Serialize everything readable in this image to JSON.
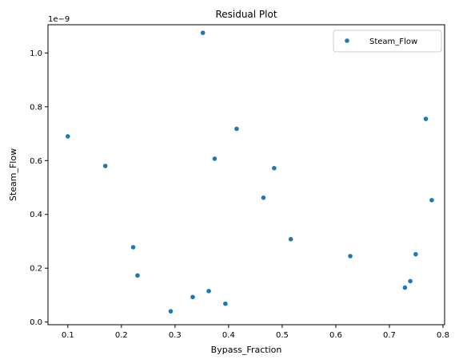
{
  "chart_data": {
    "type": "scatter",
    "title": "Residual Plot",
    "xlabel": "Bypass_Fraction",
    "ylabel": "Steam_Flow",
    "y_offset_label": "1e−9",
    "xlim": [
      0.063,
      0.803
    ],
    "ylim": [
      -0.01,
      1.105
    ],
    "x_ticks": [
      0.1,
      0.2,
      0.3,
      0.4,
      0.5,
      0.6,
      0.7,
      0.8
    ],
    "x_tick_labels": [
      "0.1",
      "0.2",
      "0.3",
      "0.4",
      "0.5",
      "0.6",
      "0.7",
      "0.8"
    ],
    "y_ticks": [
      0.0,
      0.2,
      0.4,
      0.6,
      0.8,
      1.0
    ],
    "y_tick_labels": [
      "0.0",
      "0.2",
      "0.4",
      "0.6",
      "0.8",
      "1.0"
    ],
    "grid": false,
    "legend_position": "top-right",
    "series": [
      {
        "name": "Steam_Flow",
        "color": "#1f77b4",
        "points": [
          {
            "x": 0.1,
            "y": 0.69
          },
          {
            "x": 0.17,
            "y": 0.58
          },
          {
            "x": 0.222,
            "y": 0.278
          },
          {
            "x": 0.23,
            "y": 0.173
          },
          {
            "x": 0.292,
            "y": 0.04
          },
          {
            "x": 0.333,
            "y": 0.093
          },
          {
            "x": 0.352,
            "y": 1.075
          },
          {
            "x": 0.363,
            "y": 0.115
          },
          {
            "x": 0.374,
            "y": 0.607
          },
          {
            "x": 0.394,
            "y": 0.068
          },
          {
            "x": 0.415,
            "y": 0.718
          },
          {
            "x": 0.465,
            "y": 0.462
          },
          {
            "x": 0.485,
            "y": 0.572
          },
          {
            "x": 0.516,
            "y": 0.308
          },
          {
            "x": 0.627,
            "y": 0.245
          },
          {
            "x": 0.729,
            "y": 0.128
          },
          {
            "x": 0.739,
            "y": 0.152
          },
          {
            "x": 0.749,
            "y": 0.252
          },
          {
            "x": 0.768,
            "y": 0.755
          },
          {
            "x": 0.779,
            "y": 0.453
          }
        ]
      }
    ]
  }
}
